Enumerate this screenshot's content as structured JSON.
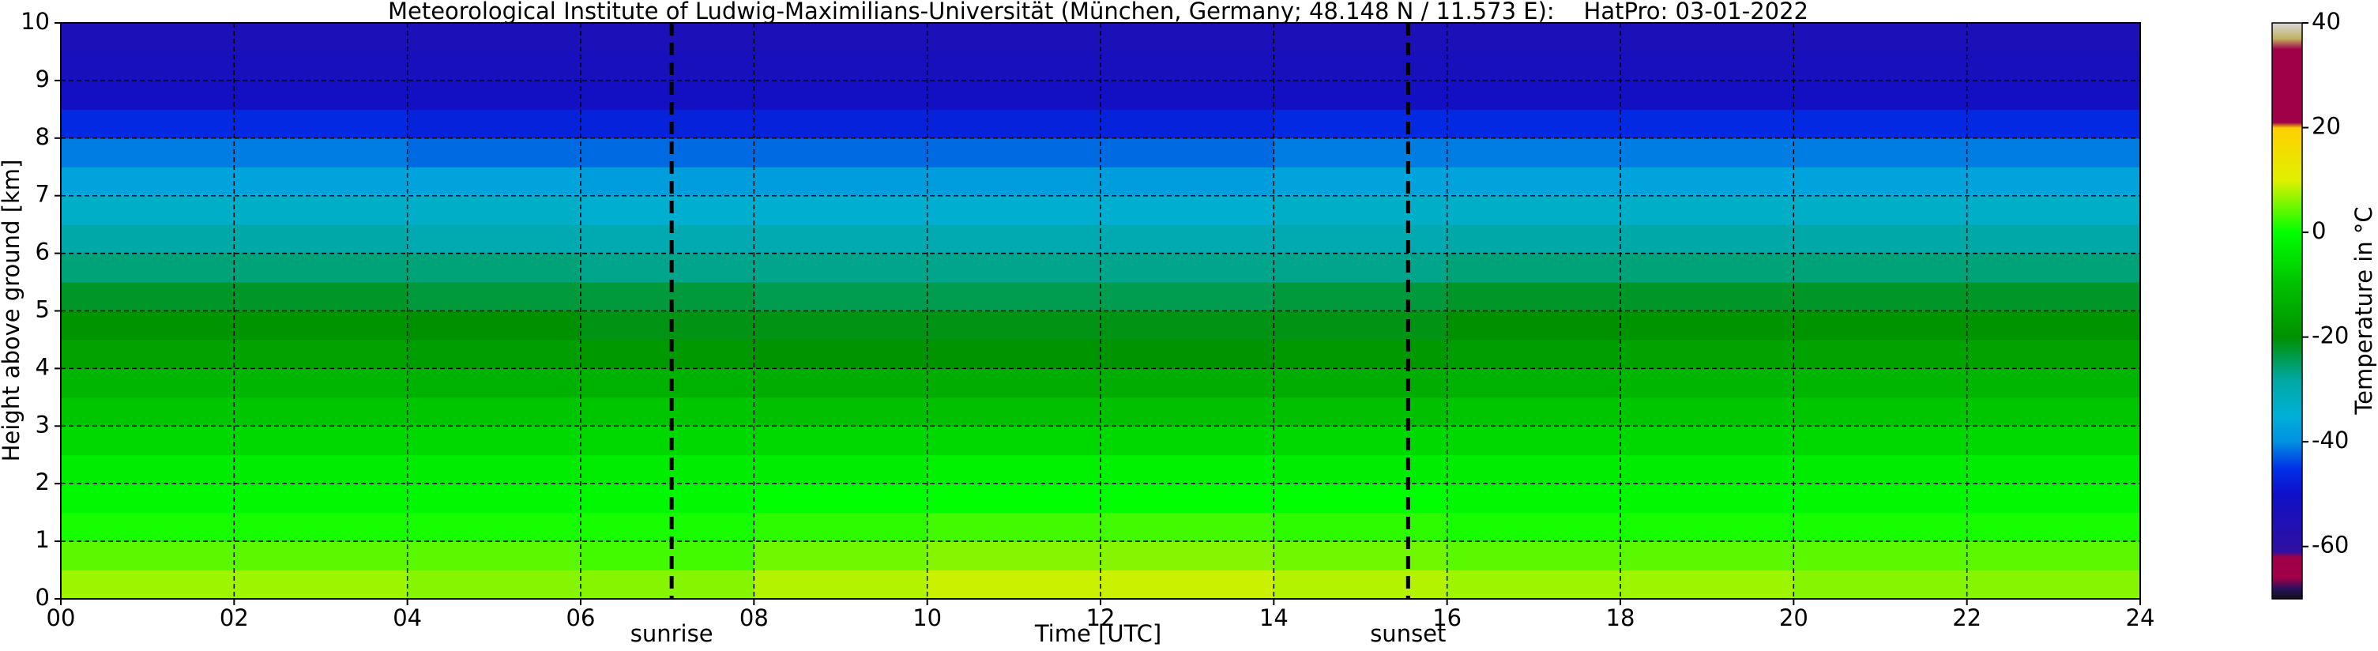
{
  "chart_data": {
    "type": "heatmap",
    "title": "Meteorological Institute of Ludwig-Maximilians-Universität (München, Germany; 48.148 N / 11.573 E):    HatPro: 03-01-2022",
    "xlabel": "Time [UTC]",
    "ylabel": "Height above ground [km]",
    "xlim": [
      0,
      24
    ],
    "ylim": [
      0,
      10
    ],
    "xticks": [
      {
        "value": 0,
        "label": "00"
      },
      {
        "value": 2,
        "label": "02"
      },
      {
        "value": 4,
        "label": "04"
      },
      {
        "value": 6,
        "label": "06"
      },
      {
        "value": 8,
        "label": "08"
      },
      10,
      12,
      14,
      16,
      18,
      20,
      22,
      24
    ],
    "yticks": [
      0,
      1,
      2,
      3,
      4,
      5,
      6,
      7,
      8,
      9,
      10
    ],
    "grid": true,
    "x_edges": [
      0,
      2,
      4,
      6,
      8,
      10,
      12,
      14,
      16,
      18,
      20,
      22,
      24
    ],
    "y_edges": [
      0,
      0.5,
      1,
      1.5,
      2,
      2.5,
      3,
      3.5,
      4,
      4.5,
      5,
      5.5,
      6,
      6.5,
      7,
      7.5,
      8,
      8.5,
      9,
      9.5,
      10
    ],
    "values": [
      [
        7,
        7,
        6,
        6,
        8,
        9,
        9,
        8,
        7,
        7,
        6,
        6
      ],
      [
        4,
        4,
        4,
        3,
        5,
        6,
        6,
        5,
        4,
        4,
        4,
        4
      ],
      [
        1,
        1,
        1,
        1,
        2,
        3,
        3,
        2,
        1,
        1,
        1,
        1
      ],
      [
        -1,
        -1,
        -1,
        -1,
        0,
        0,
        0,
        0,
        -1,
        -1,
        -1,
        -1
      ],
      [
        -3,
        -3,
        -3,
        -3,
        -3,
        -2,
        -2,
        -3,
        -3,
        -3,
        -3,
        -3
      ],
      [
        -6,
        -6,
        -6,
        -6,
        -6,
        -6,
        -6,
        -6,
        -6,
        -6,
        -6,
        -6
      ],
      [
        -9,
        -9,
        -9,
        -9,
        -10,
        -10,
        -10,
        -10,
        -9,
        -9,
        -9,
        -9
      ],
      [
        -12,
        -12,
        -13,
        -13,
        -14,
        -14,
        -14,
        -14,
        -13,
        -12,
        -12,
        -12
      ],
      [
        -16,
        -16,
        -17,
        -18,
        -19,
        -19,
        -19,
        -18,
        -17,
        -16,
        -16,
        -16
      ],
      [
        -19,
        -19,
        -20,
        -21,
        -21,
        -21,
        -21,
        -21,
        -20,
        -19,
        -19,
        -19
      ],
      [
        -22,
        -22,
        -23,
        -23,
        -24,
        -24,
        -24,
        -23,
        -22,
        -22,
        -22,
        -22
      ],
      [
        -26,
        -26,
        -26,
        -27,
        -27,
        -27,
        -27,
        -27,
        -26,
        -26,
        -26,
        -26
      ],
      [
        -29,
        -29,
        -30,
        -30,
        -30,
        -30,
        -30,
        -30,
        -29,
        -29,
        -29,
        -29
      ],
      [
        -33,
        -33,
        -33,
        -34,
        -34,
        -34,
        -34,
        -33,
        -33,
        -33,
        -33,
        -33
      ],
      [
        -37,
        -37,
        -37,
        -38,
        -38,
        -38,
        -38,
        -37,
        -37,
        -37,
        -37,
        -37
      ],
      [
        -41,
        -41,
        -42,
        -42,
        -42,
        -42,
        -42,
        -41,
        -41,
        -41,
        -41,
        -41
      ],
      [
        -46,
        -46,
        -47,
        -47,
        -47,
        -47,
        -47,
        -46,
        -46,
        -46,
        -46,
        -46
      ],
      [
        -51,
        -51,
        -51,
        -51,
        -51,
        -51,
        -51,
        -51,
        -51,
        -51,
        -51,
        -51
      ],
      [
        -53,
        -53,
        -53,
        -53,
        -53,
        -53,
        -53,
        -53,
        -53,
        -53,
        -53,
        -53
      ],
      [
        -54,
        -54,
        -54,
        -54,
        -54,
        -54,
        -54,
        -54,
        -54,
        -54,
        -54,
        -54
      ]
    ],
    "annotations": [
      {
        "label": "sunrise",
        "x": 7.05
      },
      {
        "label": "sunset",
        "x": 15.55
      }
    ],
    "colorbar": {
      "label": "Temperature in °C",
      "lim": [
        -70,
        40
      ],
      "ticks": [
        -60,
        -40,
        -20,
        0,
        20,
        40
      ],
      "stops": [
        {
          "value": -70,
          "color": "#111111"
        },
        {
          "value": -68,
          "color": "#2a1060"
        },
        {
          "value": -66,
          "color": "#a00048"
        },
        {
          "value": -62,
          "color": "#a00048"
        },
        {
          "value": -61,
          "color": "#3010a0"
        },
        {
          "value": -50,
          "color": "#1010c8"
        },
        {
          "value": -45,
          "color": "#0030e8"
        },
        {
          "value": -40,
          "color": "#0090e0"
        },
        {
          "value": -35,
          "color": "#00b0d8"
        },
        {
          "value": -28,
          "color": "#00a8a0"
        },
        {
          "value": -20,
          "color": "#009000"
        },
        {
          "value": -10,
          "color": "#00c000"
        },
        {
          "value": 0,
          "color": "#00ff00"
        },
        {
          "value": 10,
          "color": "#e0f000"
        },
        {
          "value": 20,
          "color": "#ffd000"
        },
        {
          "value": 21,
          "color": "#a00048"
        },
        {
          "value": 35,
          "color": "#a00048"
        },
        {
          "value": 37,
          "color": "#c0b060"
        },
        {
          "value": 40,
          "color": "#d8d8d8"
        }
      ]
    }
  }
}
